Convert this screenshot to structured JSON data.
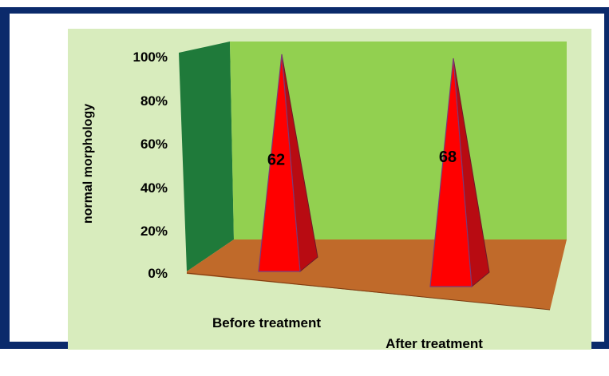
{
  "chart_data": {
    "type": "bar",
    "style": "3d-pyramid",
    "categories": [
      "Before treatment",
      "After treatment"
    ],
    "values": [
      62,
      68
    ],
    "data_labels": [
      "62",
      "68"
    ],
    "title": "",
    "xlabel": "",
    "ylabel": "normal morphology",
    "ylim": [
      0,
      100
    ],
    "yticks": [
      "0%",
      "20%",
      "40%",
      "60%",
      "80%",
      "100%"
    ],
    "grid": false,
    "legend": "none",
    "colors": {
      "pyramid_front": "#ff0000",
      "pyramid_side": "#b80b12",
      "back_wall": "#92d050",
      "side_wall": "#1f7a3a",
      "floor": "#c06a2a",
      "chart_area": "#d8ecbd",
      "frame": "#0b2a6b"
    }
  }
}
